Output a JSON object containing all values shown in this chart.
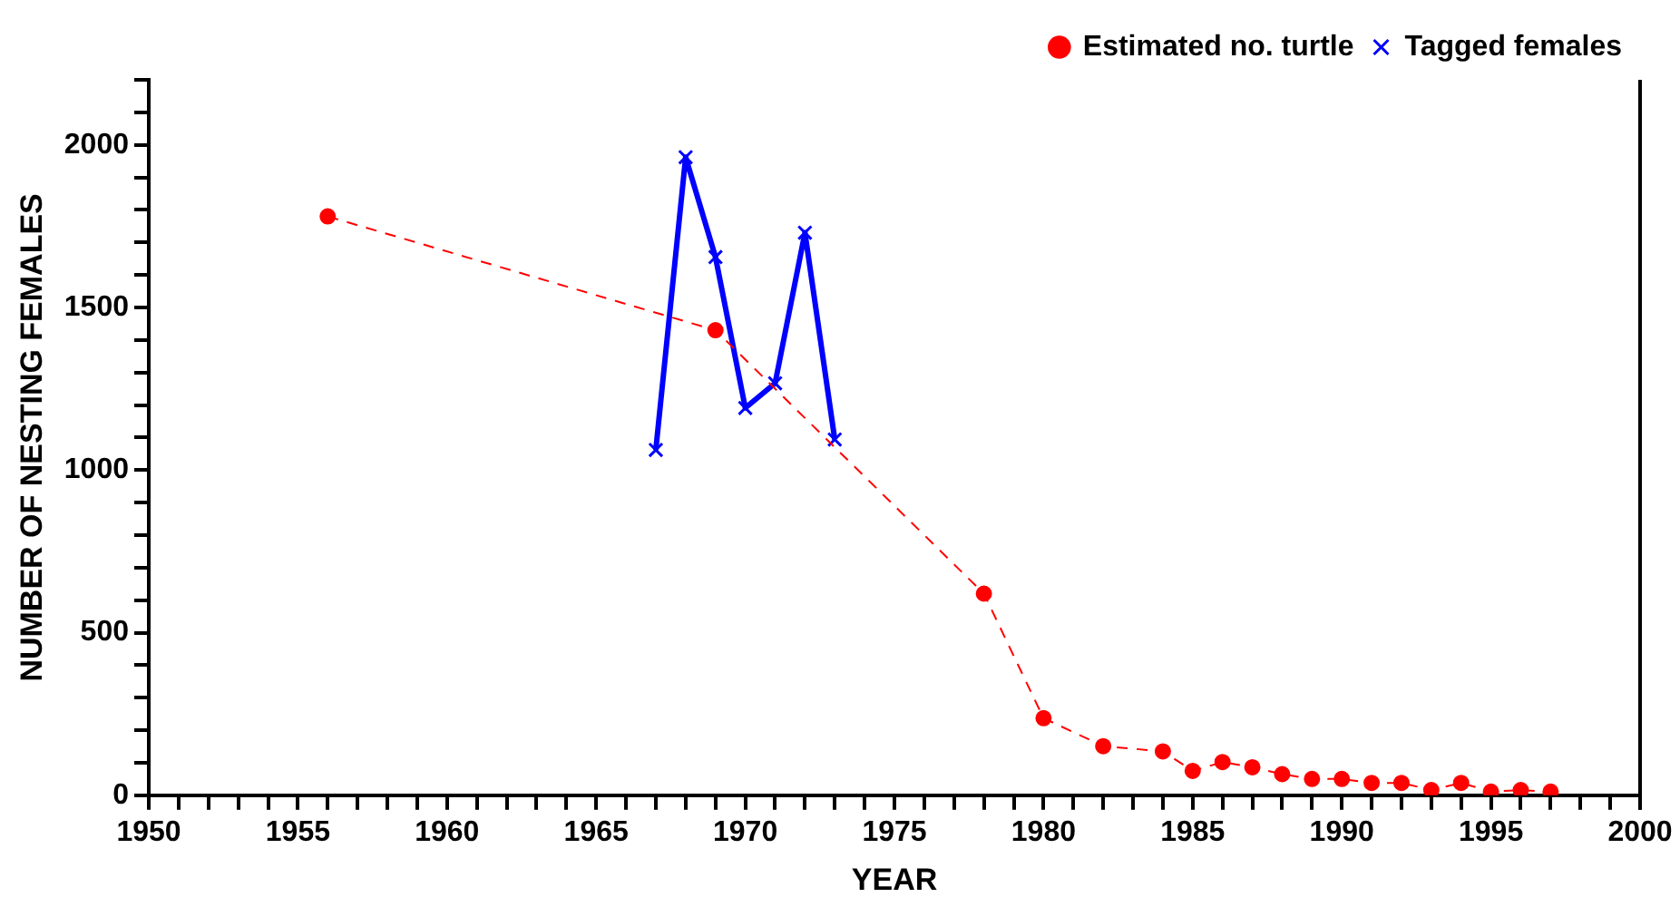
{
  "chart_data": {
    "type": "line",
    "xlabel": "YEAR",
    "ylabel": "NUMBER OF NESTING FEMALES",
    "xlim": [
      1950,
      2000
    ],
    "xticks": [
      1950,
      {
        "value": 1951,
        "label": null
      },
      {
        "value": 1952,
        "label": null
      },
      {
        "value": 1953,
        "label": null
      },
      {
        "value": 1954,
        "label": null
      },
      1955,
      {
        "value": 1956,
        "label": null
      },
      {
        "value": 1957,
        "label": null
      },
      {
        "value": 1958,
        "label": null
      },
      {
        "value": 1959,
        "label": null
      },
      1960,
      {
        "value": 1961,
        "label": null
      },
      {
        "value": 1962,
        "label": null
      },
      {
        "value": 1963,
        "label": null
      },
      {
        "value": 1964,
        "label": null
      },
      1965,
      {
        "value": 1966,
        "label": null
      },
      {
        "value": 1967,
        "label": null
      },
      {
        "value": 1968,
        "label": null
      },
      {
        "value": 1969,
        "label": null
      },
      1970,
      {
        "value": 1971,
        "label": null
      },
      {
        "value": 1972,
        "label": null
      },
      {
        "value": 1973,
        "label": null
      },
      {
        "value": 1974,
        "label": null
      },
      1975,
      {
        "value": 1976,
        "label": null
      },
      {
        "value": 1977,
        "label": null
      },
      {
        "value": 1978,
        "label": null
      },
      {
        "value": 1979,
        "label": null
      },
      1980,
      {
        "value": 1981,
        "label": null
      },
      {
        "value": 1982,
        "label": null
      },
      {
        "value": 1983,
        "label": null
      },
      {
        "value": 1984,
        "label": null
      },
      1985,
      {
        "value": 1986,
        "label": null
      },
      {
        "value": 1987,
        "label": null
      },
      {
        "value": 1988,
        "label": null
      },
      {
        "value": 1989,
        "label": null
      },
      1990,
      {
        "value": 1991,
        "label": null
      },
      {
        "value": 1992,
        "label": null
      },
      {
        "value": 1993,
        "label": null
      },
      {
        "value": 1994,
        "label": null
      },
      1995,
      {
        "value": 1996,
        "label": null
      },
      {
        "value": 1997,
        "label": null
      },
      {
        "value": 1998,
        "label": null
      },
      {
        "value": 1999,
        "label": null
      },
      2000
    ],
    "ylim": [
      0,
      2200
    ],
    "yticks": [
      0,
      {
        "value": 100,
        "label": null
      },
      {
        "value": 200,
        "label": null
      },
      {
        "value": 300,
        "label": null
      },
      {
        "value": 400,
        "label": null
      },
      500,
      {
        "value": 600,
        "label": null
      },
      {
        "value": 700,
        "label": null
      },
      {
        "value": 800,
        "label": null
      },
      {
        "value": 900,
        "label": null
      },
      1000,
      {
        "value": 1100,
        "label": null
      },
      {
        "value": 1200,
        "label": null
      },
      {
        "value": 1300,
        "label": null
      },
      {
        "value": 1400,
        "label": null
      },
      1500,
      {
        "value": 1600,
        "label": null
      },
      {
        "value": 1700,
        "label": null
      },
      {
        "value": 1800,
        "label": null
      },
      {
        "value": 1900,
        "label": null
      },
      2000,
      {
        "value": 2100,
        "label": null
      },
      {
        "value": 2200,
        "label": null
      }
    ],
    "grid": false,
    "legend": "top right",
    "series": [
      {
        "name": "Estimated no. turtle",
        "color": "#ff0000",
        "marker": "circle",
        "line_style": "dashed",
        "x": [
          1956,
          1969,
          1978,
          1980,
          1982,
          1984,
          1985,
          1986,
          1987,
          1988,
          1989,
          1990,
          1991,
          1992,
          1993,
          1994,
          1995,
          1996,
          1997
        ],
        "values": [
          1780,
          1430,
          620,
          237,
          151,
          135,
          75,
          102,
          86,
          65,
          50,
          50,
          38,
          38,
          16,
          38,
          11,
          16,
          11
        ]
      },
      {
        "name": "Tagged females",
        "color": "#0000ff",
        "marker": "cross",
        "line_style": "solid",
        "x": [
          1967,
          1968,
          1969,
          1970,
          1971,
          1972,
          1973
        ],
        "values": [
          1062,
          1962,
          1655,
          1191,
          1267,
          1730,
          1094
        ]
      }
    ]
  }
}
